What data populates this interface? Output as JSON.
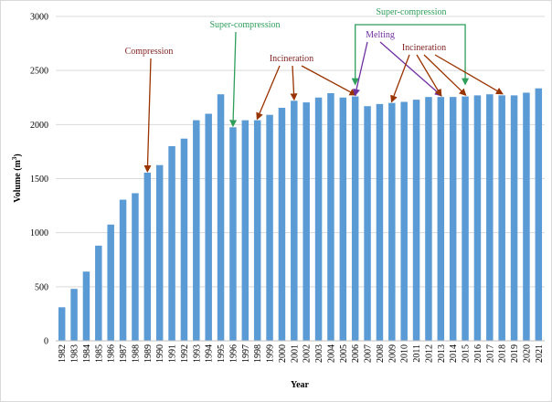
{
  "chart_data": {
    "type": "bar",
    "xlabel": "Year",
    "ylabel": "Volume (m",
    "ylabel_sup": "3",
    "ylabel_close": ")",
    "ylim": [
      0,
      3000
    ],
    "yticks": [
      0,
      500,
      1000,
      1500,
      2000,
      2500,
      3000
    ],
    "grid": true,
    "bar_color": "#5b9bd5",
    "categories": [
      "1982",
      "1983",
      "1984",
      "1985",
      "1986",
      "1987",
      "1988",
      "1989",
      "1990",
      "1991",
      "1992",
      "1993",
      "1994",
      "1995",
      "1996",
      "1997",
      "1998",
      "1999",
      "2000",
      "2001",
      "2002",
      "2003",
      "2004",
      "2005",
      "2006",
      "2007",
      "2008",
      "2009",
      "2010",
      "2011",
      "2012",
      "2013",
      "2014",
      "2015",
      "2016",
      "2017",
      "2018",
      "2019",
      "2020",
      "2021"
    ],
    "values": [
      310,
      480,
      640,
      880,
      1075,
      1305,
      1365,
      1555,
      1625,
      1800,
      1870,
      2040,
      2100,
      2280,
      1975,
      2040,
      2040,
      2090,
      2155,
      2220,
      2205,
      2250,
      2290,
      2250,
      2260,
      2170,
      2190,
      2200,
      2210,
      2230,
      2255,
      2255,
      2255,
      2260,
      2270,
      2280,
      2270,
      2270,
      2295,
      2335
    ],
    "annotations": [
      {
        "label": "Compression",
        "color": "#7f1f1f",
        "arrow_color": "#993300",
        "targets": [
          "1989"
        ]
      },
      {
        "label": "Super-compression",
        "color": "#2e9e5b",
        "arrow_color": "#2e9e5b",
        "targets": [
          "1996"
        ]
      },
      {
        "label": "Incineration",
        "color": "#7f1f1f",
        "arrow_color": "#993300",
        "targets": [
          "1998",
          "2001",
          "2006"
        ]
      },
      {
        "label": "Super-compression",
        "color": "#2e9e5b",
        "arrow_color": "#2e9e5b",
        "targets": [
          "2006",
          "2015"
        ]
      },
      {
        "label": "Melting",
        "color": "#7030a0",
        "arrow_color": "#7030a0",
        "targets": [
          "2006",
          "2013"
        ]
      },
      {
        "label": "Incineration",
        "color": "#7f1f1f",
        "arrow_color": "#993300",
        "targets": [
          "2009",
          "2013",
          "2015",
          "2018"
        ]
      }
    ]
  }
}
